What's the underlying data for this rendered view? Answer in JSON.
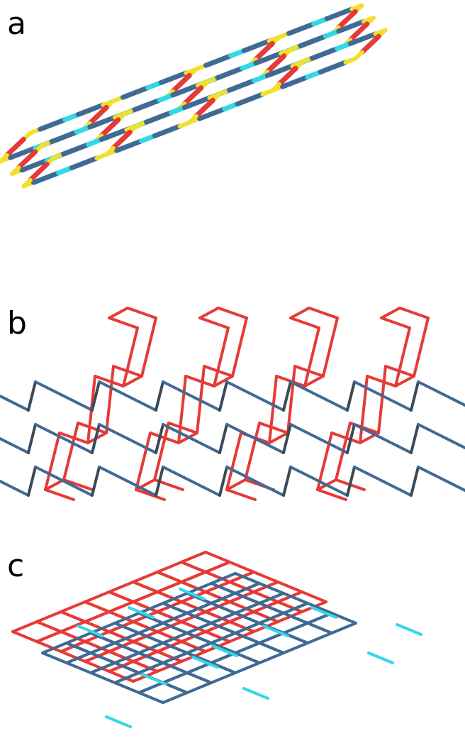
{
  "panels": [
    {
      "label": "a"
    },
    {
      "label": "b"
    },
    {
      "label": "c"
    }
  ],
  "colors": {
    "yellow": "#f2e02c",
    "red": "#e63a38",
    "steel_blue": "#3f6a94",
    "cyan": "#33d8e6",
    "dark_gray": "#3b4a57"
  }
}
